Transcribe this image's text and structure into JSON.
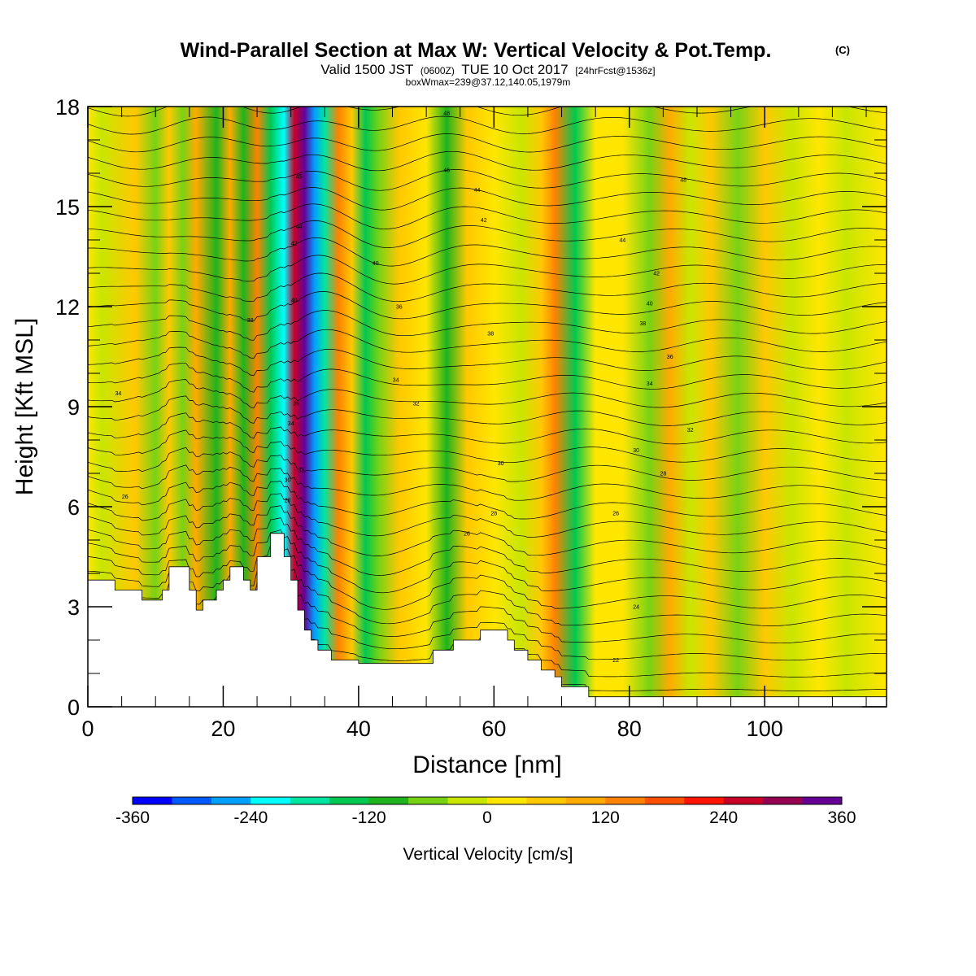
{
  "chart_data": {
    "type": "heatmap",
    "title": "Wind-Parallel Section at Max W: Vertical Velocity & Pot.Temp.",
    "title_mark": "(C)",
    "subtitle": {
      "main": "Valid 1500 JST",
      "utc": "(0600Z)",
      "date": "TUE 10 Oct 2017",
      "fcst": "[24hrFcst@1536z]"
    },
    "subtitle2": "boxWmax=239@37.12,140.05,1979m",
    "xlabel": "Distance [nm]",
    "ylabel": "Height [Kft MSL]",
    "xlim": [
      0,
      118
    ],
    "ylim": [
      0,
      18
    ],
    "xticks": [
      0,
      20,
      40,
      60,
      80,
      100
    ],
    "xtick_labels": [
      "0",
      "20",
      "40",
      "60",
      "80",
      "100"
    ],
    "yticks": [
      0,
      3,
      6,
      9,
      12,
      15,
      18
    ],
    "ytick_labels": [
      "0",
      "3",
      "6",
      "9",
      "12",
      "15",
      "18"
    ],
    "colorbar": {
      "label": "Vertical Velocity [cm/s]",
      "min": -360,
      "max": 360,
      "step": 40,
      "tick_values": [
        -360,
        -240,
        -120,
        0,
        120,
        240,
        360
      ],
      "tick_labels": [
        "-360",
        "-240",
        "-120",
        "0",
        "120",
        "240",
        "360"
      ],
      "colors": [
        "#0000ff",
        "#005aff",
        "#00a0ff",
        "#00ffff",
        "#00e6a0",
        "#00c850",
        "#1eb41e",
        "#78d214",
        "#c8e600",
        "#ffe600",
        "#ffc800",
        "#ffaa00",
        "#ff8200",
        "#ff5000",
        "#ff1400",
        "#c80028",
        "#960050",
        "#640096"
      ]
    },
    "terrain_kft": [
      [
        0,
        3.8
      ],
      [
        4,
        3.8
      ],
      [
        4,
        3.5
      ],
      [
        8,
        3.5
      ],
      [
        8,
        3.2
      ],
      [
        11,
        3.2
      ],
      [
        11,
        3.5
      ],
      [
        12,
        3.5
      ],
      [
        12,
        4.2
      ],
      [
        15,
        4.2
      ],
      [
        15,
        3.5
      ],
      [
        16,
        3.5
      ],
      [
        16,
        2.9
      ],
      [
        17,
        2.9
      ],
      [
        17,
        3.2
      ],
      [
        19,
        3.2
      ],
      [
        19,
        3.5
      ],
      [
        20,
        3.5
      ],
      [
        20,
        3.8
      ],
      [
        21,
        3.8
      ],
      [
        21,
        4.2
      ],
      [
        23,
        4.2
      ],
      [
        23,
        3.8
      ],
      [
        24,
        3.8
      ],
      [
        24,
        3.5
      ],
      [
        25,
        3.5
      ],
      [
        25,
        4.5
      ],
      [
        27,
        4.5
      ],
      [
        27,
        5.2
      ],
      [
        29,
        5.2
      ],
      [
        29,
        4.5
      ],
      [
        30,
        4.5
      ],
      [
        30,
        3.8
      ],
      [
        31,
        3.8
      ],
      [
        31,
        2.9
      ],
      [
        32,
        2.9
      ],
      [
        32,
        2.3
      ],
      [
        33,
        2.3
      ],
      [
        33,
        2.0
      ],
      [
        34,
        2.0
      ],
      [
        34,
        1.7
      ],
      [
        36,
        1.7
      ],
      [
        36,
        1.4
      ],
      [
        40,
        1.4
      ],
      [
        40,
        1.3
      ],
      [
        51,
        1.3
      ],
      [
        51,
        1.7
      ],
      [
        54,
        1.7
      ],
      [
        54,
        2.0
      ],
      [
        58,
        2.0
      ],
      [
        58,
        2.3
      ],
      [
        62,
        2.3
      ],
      [
        62,
        2.0
      ],
      [
        63,
        2.0
      ],
      [
        63,
        1.7
      ],
      [
        65,
        1.7
      ],
      [
        65,
        1.4
      ],
      [
        67,
        1.4
      ],
      [
        67,
        1.1
      ],
      [
        69,
        1.1
      ],
      [
        69,
        0.9
      ],
      [
        70,
        0.9
      ],
      [
        70,
        0.6
      ],
      [
        74,
        0.6
      ],
      [
        74,
        0.3
      ],
      [
        100,
        0.3
      ],
      [
        100,
        0.3
      ],
      [
        118,
        0.3
      ]
    ],
    "w_features_cms": [
      {
        "x": 0,
        "w": 30
      },
      {
        "x": 2,
        "w": -40
      },
      {
        "x": 7,
        "w": 40
      },
      {
        "x": 10,
        "w": -60
      },
      {
        "x": 12,
        "w": 50
      },
      {
        "x": 14,
        "w": -80
      },
      {
        "x": 16,
        "w": 100
      },
      {
        "x": 19,
        "w": -100
      },
      {
        "x": 21,
        "w": 80
      },
      {
        "x": 23,
        "w": -110
      },
      {
        "x": 25,
        "w": 120
      },
      {
        "x": 27,
        "w": -140
      },
      {
        "x": 29,
        "w": -230
      },
      {
        "x": 30.5,
        "w": 250
      },
      {
        "x": 32,
        "w": 340
      },
      {
        "x": 33.5,
        "w": -260
      },
      {
        "x": 35,
        "w": -180
      },
      {
        "x": 37,
        "w": 150
      },
      {
        "x": 39,
        "w": 60
      },
      {
        "x": 41,
        "w": -130
      },
      {
        "x": 43,
        "w": -60
      },
      {
        "x": 46,
        "w": 40
      },
      {
        "x": 50,
        "w": 20
      },
      {
        "x": 53,
        "w": -120
      },
      {
        "x": 56,
        "w": 50
      },
      {
        "x": 60,
        "w": 10
      },
      {
        "x": 64,
        "w": -30
      },
      {
        "x": 67,
        "w": 60
      },
      {
        "x": 69,
        "w": 130
      },
      {
        "x": 72,
        "w": -140
      },
      {
        "x": 75,
        "w": 30
      },
      {
        "x": 79,
        "w": 10
      },
      {
        "x": 83,
        "w": -60
      },
      {
        "x": 86,
        "w": 80
      },
      {
        "x": 89,
        "w": -40
      },
      {
        "x": 92,
        "w": 50
      },
      {
        "x": 96,
        "w": -50
      },
      {
        "x": 100,
        "w": 40
      },
      {
        "x": 104,
        "w": -20
      },
      {
        "x": 108,
        "w": 20
      },
      {
        "x": 112,
        "w": -30
      },
      {
        "x": 118,
        "w": 10
      }
    ],
    "theta_contours": {
      "interval": 1,
      "labels": [
        {
          "x": 4.5,
          "y": 9.4,
          "text": "34"
        },
        {
          "x": 5.5,
          "y": 6.3,
          "text": "26"
        },
        {
          "x": 24,
          "y": 11.6,
          "text": "38"
        },
        {
          "x": 30.5,
          "y": 13.9,
          "text": "42"
        },
        {
          "x": 31.2,
          "y": 14.4,
          "text": "44"
        },
        {
          "x": 31.2,
          "y": 15.9,
          "text": "45"
        },
        {
          "x": 30.5,
          "y": 12.2,
          "text": "40"
        },
        {
          "x": 30.8,
          "y": 9.1,
          "text": "36"
        },
        {
          "x": 30.0,
          "y": 8.5,
          "text": "34"
        },
        {
          "x": 31.5,
          "y": 7.1,
          "text": "32"
        },
        {
          "x": 29.5,
          "y": 6.8,
          "text": "30"
        },
        {
          "x": 29.5,
          "y": 6.2,
          "text": "28"
        },
        {
          "x": 42.5,
          "y": 13.3,
          "text": "40"
        },
        {
          "x": 46,
          "y": 12.0,
          "text": "36"
        },
        {
          "x": 45.5,
          "y": 9.8,
          "text": "34"
        },
        {
          "x": 48.5,
          "y": 9.1,
          "text": "32"
        },
        {
          "x": 53,
          "y": 16.1,
          "text": "46"
        },
        {
          "x": 53,
          "y": 17.8,
          "text": "48"
        },
        {
          "x": 57.5,
          "y": 15.5,
          "text": "44"
        },
        {
          "x": 58.5,
          "y": 14.6,
          "text": "42"
        },
        {
          "x": 59.5,
          "y": 11.2,
          "text": "38"
        },
        {
          "x": 61,
          "y": 7.3,
          "text": "30"
        },
        {
          "x": 60,
          "y": 5.8,
          "text": "28"
        },
        {
          "x": 56,
          "y": 5.2,
          "text": "26"
        },
        {
          "x": 88,
          "y": 15.8,
          "text": "48"
        },
        {
          "x": 79,
          "y": 14.0,
          "text": "44"
        },
        {
          "x": 84,
          "y": 13.0,
          "text": "42"
        },
        {
          "x": 83,
          "y": 12.1,
          "text": "40"
        },
        {
          "x": 82,
          "y": 11.5,
          "text": "38"
        },
        {
          "x": 86,
          "y": 10.5,
          "text": "36"
        },
        {
          "x": 83,
          "y": 9.7,
          "text": "34"
        },
        {
          "x": 89,
          "y": 8.3,
          "text": "32"
        },
        {
          "x": 81,
          "y": 7.7,
          "text": "30"
        },
        {
          "x": 85,
          "y": 7.0,
          "text": "28"
        },
        {
          "x": 78,
          "y": 5.8,
          "text": "26"
        },
        {
          "x": 81,
          "y": 3.0,
          "text": "24"
        },
        {
          "x": 78,
          "y": 1.4,
          "text": "22"
        }
      ]
    }
  }
}
